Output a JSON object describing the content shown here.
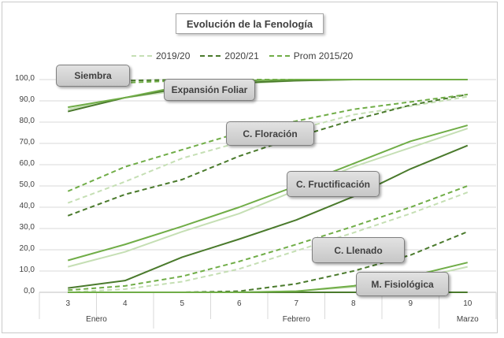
{
  "chart_data": {
    "type": "line",
    "title": "Evolución de la Fenología",
    "x": [
      3,
      4,
      5,
      6,
      7,
      8,
      9,
      10
    ],
    "x_tick_labels": [
      "3",
      "4",
      "5",
      "6",
      "7",
      "8",
      "9",
      "10"
    ],
    "months": [
      {
        "label": "Enero",
        "from": 3,
        "to": 4.5
      },
      {
        "label": "Febrero",
        "from": 4.5,
        "to": 9.5
      },
      {
        "label": "Marzo",
        "from": 9.5,
        "to": 10
      }
    ],
    "ylim": [
      0,
      100
    ],
    "y_ticks": [
      "0,0",
      "10,0",
      "20,0",
      "30,0",
      "40,0",
      "50,0",
      "60,0",
      "70,0",
      "80,0",
      "90,0",
      "100,0"
    ],
    "legend": [
      {
        "name": "2019/20",
        "color": "#c5dfb4",
        "dash": "long"
      },
      {
        "name": "2020/21",
        "color": "#4a7a2c",
        "dash": "long"
      },
      {
        "name": "Prom 2015/20",
        "color": "#70ad47",
        "dash": "long"
      }
    ],
    "stages": [
      {
        "label": "Siembra",
        "series": [
          {
            "year": "2019/20",
            "style": "dashed",
            "values": [
              99,
              99.5,
              100,
              100,
              100,
              100,
              100,
              100
            ]
          },
          {
            "year": "2020/21",
            "style": "dashed",
            "values": [
              98.5,
              99.5,
              100,
              100,
              100,
              100,
              100,
              100
            ]
          },
          {
            "year": "Prom 2015/20",
            "style": "dashed",
            "values": [
              97.5,
              98.5,
              99.5,
              100,
              100,
              100,
              100,
              100
            ]
          }
        ]
      },
      {
        "label": "Expansión Foliar",
        "series": [
          {
            "year": "2019/20",
            "style": "solid",
            "values": [
              86,
              91.5,
              95,
              98,
              99.5,
              100,
              100,
              100
            ]
          },
          {
            "year": "2020/21",
            "style": "solid",
            "values": [
              85,
              91.5,
              96,
              98.5,
              99.5,
              100,
              100,
              100
            ]
          },
          {
            "year": "Prom 2015/20",
            "style": "solid",
            "values": [
              87,
              91.5,
              97,
              99.5,
              100,
              100,
              100,
              100
            ]
          }
        ]
      },
      {
        "label": "C. Floración",
        "series": [
          {
            "year": "2019/20",
            "style": "dashed",
            "values": [
              42,
              52,
              63,
              70.5,
              76.5,
              83.5,
              87.5,
              92
            ]
          },
          {
            "year": "2020/21",
            "style": "dashed",
            "values": [
              36,
              46,
              53,
              64,
              73,
              81,
              88,
              93
            ]
          },
          {
            "year": "Prom 2015/20",
            "style": "dashed",
            "values": [
              47.5,
              59,
              67,
              75,
              80.5,
              86,
              89.5,
              93
            ]
          }
        ]
      },
      {
        "label": "C. Fructificación",
        "series": [
          {
            "year": "2019/20",
            "style": "solid",
            "values": [
              12,
              19,
              28.5,
              37,
              48,
              59,
              68,
              77
            ]
          },
          {
            "year": "2020/21",
            "style": "solid",
            "values": [
              2,
              5.5,
              16.5,
              25,
              34,
              45,
              58,
              69
            ]
          },
          {
            "year": "Prom 2015/20",
            "style": "solid",
            "values": [
              15,
              22.5,
              31,
              40,
              50,
              60.5,
              71,
              78.5
            ]
          }
        ]
      },
      {
        "label": "C. Llenado",
        "series": [
          {
            "year": "2019/20",
            "style": "dashed",
            "values": [
              0,
              1.5,
              5,
              11,
              19.5,
              28,
              37,
              47
            ]
          },
          {
            "year": "2020/21",
            "style": "dashed",
            "values": [
              0,
              0,
              0,
              0.5,
              4,
              10,
              17.5,
              28.5
            ]
          },
          {
            "year": "Prom 2015/20",
            "style": "dashed",
            "values": [
              1,
              3,
              7.5,
              14.5,
              22.5,
              31,
              40,
              50
            ]
          }
        ]
      },
      {
        "label": "M. Fisiológica",
        "series": [
          {
            "year": "2019/20",
            "style": "solid",
            "values": [
              0,
              0,
              0,
              0,
              0.5,
              2.5,
              6,
              12
            ]
          },
          {
            "year": "2020/21",
            "style": "solid",
            "values": [
              0,
              0,
              0,
              0,
              0,
              0,
              0,
              0
            ]
          },
          {
            "year": "Prom 2015/20",
            "style": "solid",
            "values": [
              0,
              0,
              0,
              0,
              0.5,
              3,
              7.5,
              14
            ]
          }
        ]
      }
    ],
    "grid": true
  }
}
